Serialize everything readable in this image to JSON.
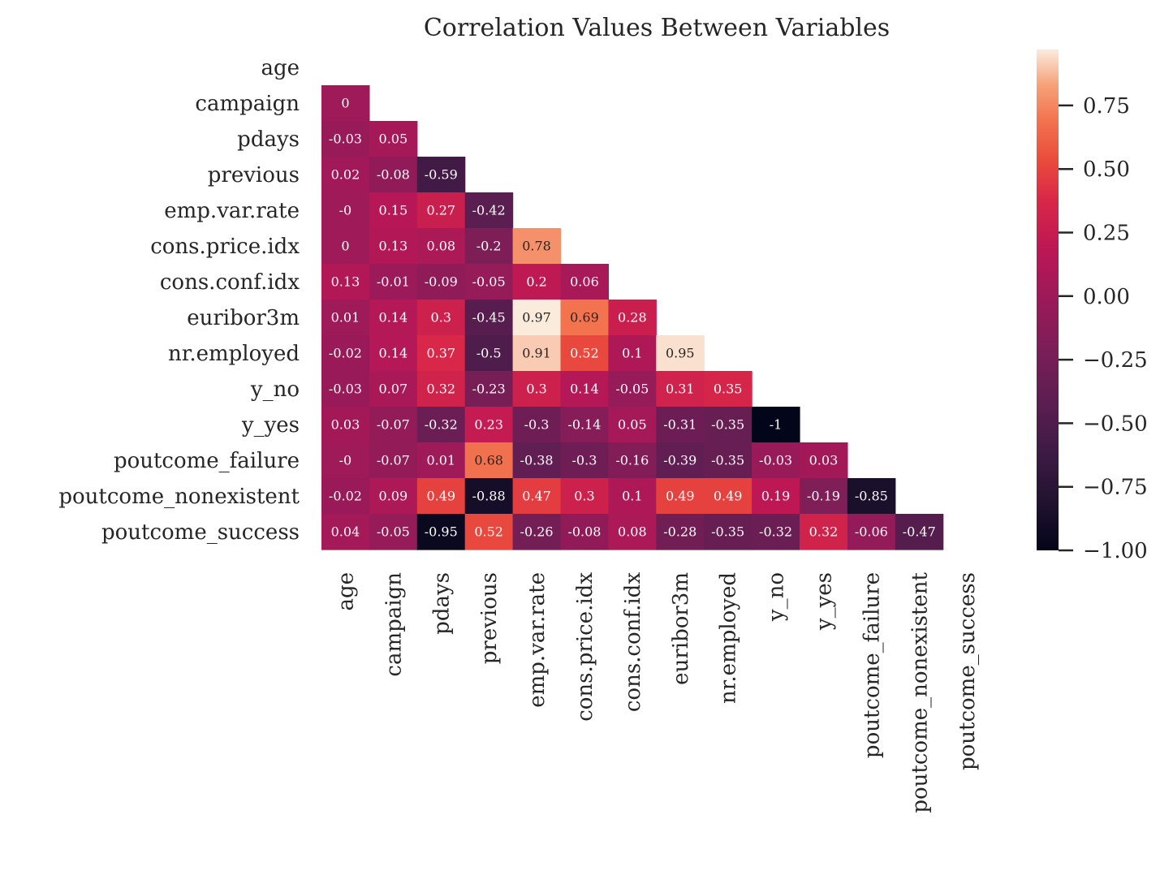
{
  "chart_data": {
    "type": "heatmap",
    "title": "Correlation Values Between Variables",
    "variables": [
      "age",
      "campaign",
      "pdays",
      "previous",
      "emp.var.rate",
      "cons.price.idx",
      "cons.conf.idx",
      "euribor3m",
      "nr.employed",
      "y_no",
      "y_yes",
      "poutcome_failure",
      "poutcome_nonexistent",
      "poutcome_success"
    ],
    "matrix": [
      [],
      [
        "0"
      ],
      [
        "-0.03",
        "0.05"
      ],
      [
        "0.02",
        "-0.08",
        "-0.59"
      ],
      [
        "-0",
        "0.15",
        "0.27",
        "-0.42"
      ],
      [
        "0",
        "0.13",
        "0.08",
        "-0.2",
        "0.78"
      ],
      [
        "0.13",
        "-0.01",
        "-0.09",
        "-0.05",
        "0.2",
        "0.06"
      ],
      [
        "0.01",
        "0.14",
        "0.3",
        "-0.45",
        "0.97",
        "0.69",
        "0.28"
      ],
      [
        "-0.02",
        "0.14",
        "0.37",
        "-0.5",
        "0.91",
        "0.52",
        "0.1",
        "0.95"
      ],
      [
        "-0.03",
        "0.07",
        "0.32",
        "-0.23",
        "0.3",
        "0.14",
        "-0.05",
        "0.31",
        "0.35"
      ],
      [
        "0.03",
        "-0.07",
        "-0.32",
        "0.23",
        "-0.3",
        "-0.14",
        "0.05",
        "-0.31",
        "-0.35",
        "-1"
      ],
      [
        "-0",
        "-0.07",
        "0.01",
        "0.68",
        "-0.38",
        "-0.3",
        "-0.16",
        "-0.39",
        "-0.35",
        "-0.03",
        "0.03"
      ],
      [
        "-0.02",
        "0.09",
        "0.49",
        "-0.88",
        "0.47",
        "0.3",
        "0.1",
        "0.49",
        "0.49",
        "0.19",
        "-0.19",
        "-0.85"
      ],
      [
        "0.04",
        "-0.05",
        "-0.95",
        "0.52",
        "-0.26",
        "-0.08",
        "0.08",
        "-0.28",
        "-0.35",
        "-0.32",
        "0.32",
        "-0.06",
        "-0.47"
      ]
    ],
    "mask": "upper triangle incl. diagonal",
    "colormap": "rocket",
    "vmin": -1.0,
    "vmax": 0.97,
    "colorbar": {
      "ticks": [
        0.75,
        0.5,
        0.25,
        0.0,
        -0.25,
        -0.5,
        -0.75,
        -1.0
      ],
      "tick_labels": [
        "0.75",
        "0.50",
        "0.25",
        "0.00",
        "−0.25",
        "−0.50",
        "−0.75",
        "−1.00"
      ]
    }
  }
}
